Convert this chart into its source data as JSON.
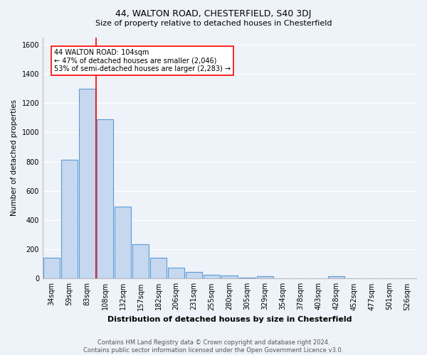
{
  "title1": "44, WALTON ROAD, CHESTERFIELD, S40 3DJ",
  "title2": "Size of property relative to detached houses in Chesterfield",
  "xlabel": "Distribution of detached houses by size in Chesterfield",
  "ylabel": "Number of detached properties",
  "footer1": "Contains HM Land Registry data © Crown copyright and database right 2024.",
  "footer2": "Contains public sector information licensed under the Open Government Licence v3.0.",
  "categories": [
    "34sqm",
    "59sqm",
    "83sqm",
    "108sqm",
    "132sqm",
    "157sqm",
    "182sqm",
    "206sqm",
    "231sqm",
    "255sqm",
    "280sqm",
    "305sqm",
    "329sqm",
    "354sqm",
    "378sqm",
    "403sqm",
    "428sqm",
    "452sqm",
    "477sqm",
    "501sqm",
    "526sqm"
  ],
  "values": [
    140,
    810,
    1300,
    1090,
    490,
    235,
    140,
    75,
    45,
    25,
    20,
    5,
    15,
    0,
    0,
    0,
    15,
    0,
    0,
    0,
    0
  ],
  "bar_color": "#c5d8f0",
  "bar_edge_color": "#5b9bd5",
  "vline_index": 3,
  "vline_color": "red",
  "annotation_line1": "44 WALTON ROAD: 104sqm",
  "annotation_line2": "← 47% of detached houses are smaller (2,046)",
  "annotation_line3": "53% of semi-detached houses are larger (2,283) →",
  "annotation_box_color": "white",
  "annotation_box_edge": "red",
  "ylim": [
    0,
    1650
  ],
  "yticks": [
    0,
    200,
    400,
    600,
    800,
    1000,
    1200,
    1400,
    1600
  ],
  "bg_color": "#eef2f9",
  "grid_color": "white",
  "title1_fontsize": 9,
  "title2_fontsize": 8,
  "xlabel_fontsize": 8,
  "ylabel_fontsize": 7.5,
  "tick_fontsize": 7,
  "footer_fontsize": 6,
  "annotation_fontsize": 7
}
